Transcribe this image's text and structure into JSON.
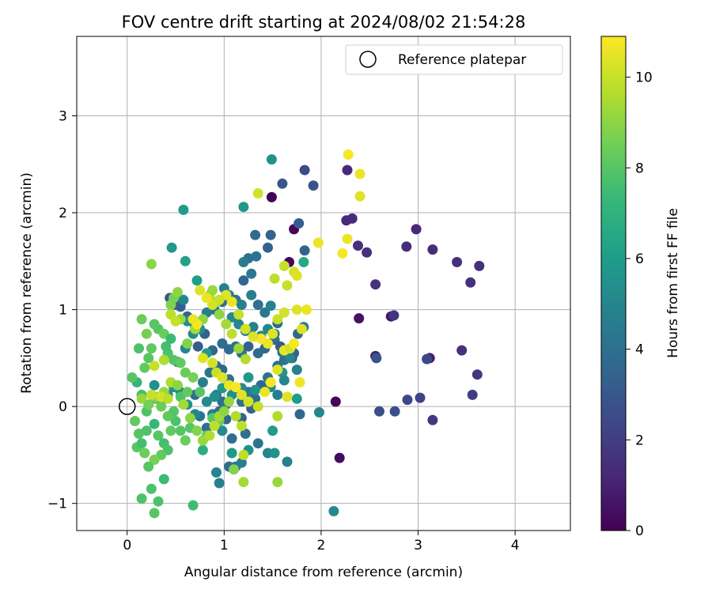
{
  "chart_data": {
    "type": "scatter",
    "title": "FOV centre drift starting at 2024/08/02 21:54:28",
    "xlabel": "Angular distance from reference (arcmin)",
    "ylabel": "Rotation from reference (arcmin)",
    "xlim": [
      -0.52,
      4.57
    ],
    "ylim": [
      -1.28,
      3.82
    ],
    "xticks": [
      0,
      1,
      2,
      3,
      4
    ],
    "xtick_labels": [
      "0",
      "1",
      "2",
      "3",
      "4"
    ],
    "yticks": [
      -1,
      0,
      1,
      2,
      3
    ],
    "ytick_labels": [
      "−1",
      "0",
      "1",
      "2",
      "3"
    ],
    "grid": true,
    "legend": {
      "placement": "top-right",
      "entries": [
        {
          "label": "Reference platepar",
          "marker": "open-circle"
        }
      ]
    },
    "reference_point": {
      "x": 0,
      "y": 0
    },
    "colorbar": {
      "label": "Hours from first FF file",
      "min": 0,
      "max": 10.9,
      "ticks": [
        0,
        2,
        4,
        6,
        8,
        10
      ],
      "colormap": "viridis"
    },
    "colormap_stops": [
      "#440154",
      "#482878",
      "#3e4989",
      "#31688e",
      "#26828e",
      "#1f9e89",
      "#35b779",
      "#6ece58",
      "#b5de2b",
      "#fde725"
    ],
    "points": [
      [
        1.49,
        2.16,
        0.1
      ],
      [
        1.72,
        1.83,
        0.2
      ],
      [
        1.67,
        1.49,
        0.2
      ],
      [
        2.15,
        0.05,
        0.2
      ],
      [
        2.19,
        -0.53,
        0.3
      ],
      [
        2.39,
        0.91,
        0.5
      ],
      [
        2.72,
        0.93,
        0.7
      ],
      [
        2.56,
        0.52,
        0.8
      ],
      [
        3.12,
        0.5,
        0.8
      ],
      [
        2.98,
        1.83,
        1.2
      ],
      [
        2.26,
        1.92,
        1.2
      ],
      [
        2.32,
        1.94,
        1.3
      ],
      [
        2.27,
        2.44,
        1.3
      ],
      [
        2.88,
        1.65,
        1.4
      ],
      [
        3.15,
        1.62,
        1.4
      ],
      [
        3.4,
        1.49,
        1.5
      ],
      [
        3.63,
        1.45,
        1.5
      ],
      [
        3.54,
        1.28,
        1.5
      ],
      [
        2.56,
        1.26,
        1.6
      ],
      [
        2.38,
        1.66,
        1.5
      ],
      [
        2.47,
        1.59,
        1.5
      ],
      [
        3.45,
        0.58,
        1.5
      ],
      [
        3.61,
        0.33,
        1.8
      ],
      [
        3.56,
        0.12,
        2.0
      ],
      [
        3.15,
        -0.14,
        1.8
      ],
      [
        2.89,
        0.07,
        2.4
      ],
      [
        3.02,
        0.09,
        2.2
      ],
      [
        2.75,
        0.94,
        1.7
      ],
      [
        3.09,
        0.49,
        2.4
      ],
      [
        2.57,
        0.5,
        2.8
      ],
      [
        2.6,
        -0.05,
        2.6
      ],
      [
        2.76,
        -0.05,
        2.6
      ],
      [
        1.83,
        2.44,
        2.5
      ],
      [
        1.92,
        2.28,
        2.8
      ],
      [
        1.6,
        2.3,
        3.0
      ],
      [
        1.77,
        1.89,
        3.2
      ],
      [
        1.83,
        1.61,
        3.4
      ],
      [
        1.45,
        1.64,
        3.3
      ],
      [
        1.48,
        1.77,
        3.5
      ],
      [
        1.32,
        1.77,
        3.8
      ],
      [
        1.76,
        0.75,
        3.7
      ],
      [
        1.72,
        0.55,
        3.5
      ],
      [
        1.7,
        0.5,
        3.3
      ],
      [
        1.55,
        0.42,
        3.9
      ],
      [
        1.78,
        -0.08,
        3.6
      ],
      [
        1.25,
        1.53,
        3.9
      ],
      [
        1.33,
        1.55,
        4.2
      ],
      [
        1.2,
        1.49,
        4.5
      ],
      [
        0.44,
        1.12,
        3.0
      ],
      [
        0.5,
        1.05,
        3.1
      ],
      [
        0.55,
        1.03,
        3.3
      ],
      [
        0.62,
        0.93,
        3.5
      ],
      [
        0.73,
        0.62,
        3.2
      ],
      [
        0.8,
        0.75,
        3.4
      ],
      [
        0.88,
        0.58,
        3.6
      ],
      [
        0.98,
        0.65,
        3.8
      ],
      [
        1.05,
        0.59,
        3.7
      ],
      [
        1.12,
        0.62,
        3.9
      ],
      [
        1.18,
        0.55,
        4.0
      ],
      [
        1.25,
        0.62,
        3.4
      ],
      [
        1.35,
        0.55,
        3.8
      ],
      [
        1.42,
        0.6,
        3.6
      ],
      [
        1.52,
        0.69,
        3.9
      ],
      [
        1.58,
        0.62,
        3.2
      ],
      [
        1.62,
        0.48,
        4.0
      ],
      [
        0.92,
        0.42,
        3.9
      ],
      [
        0.98,
        0.38,
        3.6
      ],
      [
        1.05,
        0.28,
        4.2
      ],
      [
        1.12,
        0.15,
        3.8
      ],
      [
        1.18,
        0.05,
        4.0
      ],
      [
        1.25,
        0.15,
        4.4
      ],
      [
        1.32,
        0.08,
        3.8
      ],
      [
        1.38,
        0.22,
        3.6
      ],
      [
        1.45,
        0.3,
        4.2
      ],
      [
        0.92,
        0.12,
        4.5
      ],
      [
        0.98,
        0.05,
        3.9
      ],
      [
        1.02,
        -0.13,
        3.5
      ],
      [
        1.08,
        -0.33,
        3.9
      ],
      [
        1.18,
        -0.12,
        3.6
      ],
      [
        1.22,
        -0.28,
        4.0
      ],
      [
        1.35,
        -0.38,
        4.2
      ],
      [
        1.05,
        -0.62,
        3.8
      ],
      [
        1.12,
        -0.62,
        4.2
      ],
      [
        1.18,
        -0.58,
        4.6
      ],
      [
        0.92,
        -0.68,
        5.0
      ],
      [
        0.95,
        -0.79,
        4.8
      ],
      [
        1.28,
        -0.02,
        3.4
      ],
      [
        0.75,
        -0.1,
        4.2
      ],
      [
        0.82,
        -0.22,
        3.9
      ],
      [
        0.88,
        -0.08,
        4.6
      ],
      [
        0.95,
        -0.05,
        4.0
      ],
      [
        1.02,
        0.02,
        4.2
      ],
      [
        0.7,
        0.12,
        3.9
      ],
      [
        0.78,
        0.25,
        4.6
      ],
      [
        0.85,
        0.35,
        4.2
      ],
      [
        0.52,
        0.46,
        4.8
      ],
      [
        0.6,
        0.6,
        5.0
      ],
      [
        0.68,
        0.75,
        5.2
      ],
      [
        0.75,
        0.8,
        5.5
      ],
      [
        0.82,
        0.97,
        4.6
      ],
      [
        0.9,
        1.0,
        4.4
      ],
      [
        0.98,
        1.08,
        3.9
      ],
      [
        1.05,
        1.15,
        4.6
      ],
      [
        1.12,
        1.1,
        4.2
      ],
      [
        1.18,
        1.05,
        4.8
      ],
      [
        1.28,
        1.15,
        4.6
      ],
      [
        1.35,
        1.05,
        4.0
      ],
      [
        1.42,
        0.97,
        4.4
      ],
      [
        1.48,
        1.04,
        4.8
      ],
      [
        1.55,
        0.86,
        3.8
      ],
      [
        1.2,
        1.3,
        3.6
      ],
      [
        1.28,
        1.37,
        4.4
      ],
      [
        1.0,
        1.22,
        4.8
      ],
      [
        0.58,
        1.1,
        5.0
      ],
      [
        0.62,
        0.88,
        5.4
      ],
      [
        0.7,
        0.82,
        4.8
      ],
      [
        1.08,
        0.92,
        5.2
      ],
      [
        1.15,
        0.85,
        5.0
      ],
      [
        1.22,
        0.78,
        4.6
      ],
      [
        1.3,
        0.82,
        4.8
      ],
      [
        1.38,
        0.73,
        5.5
      ],
      [
        1.45,
        0.8,
        5.0
      ],
      [
        1.52,
        0.75,
        4.5
      ],
      [
        1.6,
        0.56,
        4.2
      ],
      [
        1.68,
        0.5,
        5.0
      ],
      [
        1.75,
        0.38,
        4.8
      ],
      [
        1.82,
        0.82,
        4.6
      ],
      [
        1.6,
        0.35,
        5.6
      ],
      [
        1.48,
        0.2,
        5.2
      ],
      [
        1.55,
        0.12,
        4.6
      ],
      [
        1.62,
        0.27,
        5.0
      ],
      [
        1.32,
        0.17,
        5.5
      ],
      [
        1.25,
        0.3,
        5.8
      ],
      [
        1.18,
        0.19,
        5.2
      ],
      [
        1.08,
        0.12,
        5.4
      ],
      [
        0.98,
        0.19,
        5.8
      ],
      [
        0.9,
        0.1,
        5.5
      ],
      [
        0.82,
        0.05,
        5.2
      ],
      [
        0.7,
        -0.08,
        5.0
      ],
      [
        0.62,
        0.02,
        5.4
      ],
      [
        0.55,
        0.15,
        5.0
      ],
      [
        0.48,
        0.2,
        5.6
      ],
      [
        0.42,
        0.12,
        5.2
      ],
      [
        0.35,
        0.05,
        5.8
      ],
      [
        0.28,
        0.22,
        5.5
      ],
      [
        0.92,
        -0.15,
        5.6
      ],
      [
        0.98,
        -0.25,
        5.2
      ],
      [
        1.08,
        -0.48,
        5.8
      ],
      [
        1.25,
        -0.45,
        5.5
      ],
      [
        1.45,
        -0.48,
        5.0
      ],
      [
        1.52,
        -0.48,
        5.6
      ],
      [
        1.65,
        -0.57,
        4.8
      ],
      [
        1.5,
        -0.25,
        6.0
      ],
      [
        1.98,
        -0.06,
        5.0
      ],
      [
        2.13,
        -1.08,
        5.2
      ],
      [
        1.2,
        2.06,
        5.8
      ],
      [
        1.49,
        2.55,
        5.5
      ],
      [
        0.46,
        1.64,
        5.8
      ],
      [
        0.58,
        2.03,
        6.0
      ],
      [
        0.72,
        1.3,
        6.0
      ],
      [
        0.6,
        1.5,
        6.2
      ],
      [
        0.82,
        0.55,
        6.0
      ],
      [
        1.75,
        0.08,
        6.0
      ],
      [
        1.82,
        1.49,
        6.5
      ],
      [
        0.78,
        -0.45,
        6.8
      ],
      [
        0.68,
        -1.02,
        7.5
      ],
      [
        0.38,
        -0.75,
        7.4
      ],
      [
        0.15,
        -0.95,
        7.8
      ],
      [
        0.25,
        -0.85,
        7.8
      ],
      [
        0.32,
        -0.98,
        7.8
      ],
      [
        0.28,
        -1.1,
        8.0
      ],
      [
        0.1,
        -0.42,
        8.0
      ],
      [
        0.15,
        -0.38,
        7.6
      ],
      [
        0.2,
        -0.25,
        7.8
      ],
      [
        0.28,
        -0.18,
        7.2
      ],
      [
        0.32,
        -0.3,
        8.0
      ],
      [
        0.38,
        -0.38,
        7.6
      ],
      [
        0.45,
        -0.25,
        8.2
      ],
      [
        0.5,
        -0.15,
        7.8
      ],
      [
        0.55,
        -0.25,
        8.0
      ],
      [
        0.6,
        -0.35,
        8.4
      ],
      [
        0.65,
        -0.22,
        8.0
      ],
      [
        0.42,
        -0.45,
        7.8
      ],
      [
        0.35,
        -0.5,
        8.2
      ],
      [
        0.28,
        -0.55,
        8.6
      ],
      [
        0.22,
        -0.62,
        8.0
      ],
      [
        0.18,
        -0.48,
        8.4
      ],
      [
        0.12,
        -0.28,
        8.0
      ],
      [
        0.08,
        -0.15,
        8.2
      ],
      [
        0.2,
        -0.05,
        7.8
      ],
      [
        0.28,
        0.08,
        8.0
      ],
      [
        0.35,
        0.0,
        8.4
      ],
      [
        0.42,
        -0.1,
        8.2
      ],
      [
        0.48,
        -0.05,
        8.0
      ],
      [
        0.55,
        0.1,
        7.8
      ],
      [
        0.62,
        0.15,
        8.2
      ],
      [
        0.68,
        0.3,
        8.6
      ],
      [
        0.75,
        0.15,
        8.0
      ],
      [
        0.82,
        -0.3,
        8.2
      ],
      [
        0.88,
        -0.12,
        8.0
      ],
      [
        0.95,
        -0.15,
        8.4
      ],
      [
        0.15,
        0.12,
        7.6
      ],
      [
        0.1,
        0.25,
        7.2
      ],
      [
        0.05,
        0.3,
        8.0
      ],
      [
        0.18,
        0.4,
        8.2
      ],
      [
        0.22,
        0.5,
        8.0
      ],
      [
        0.12,
        0.6,
        7.8
      ],
      [
        0.25,
        0.6,
        8.2
      ],
      [
        0.32,
        0.8,
        8.0
      ],
      [
        0.38,
        0.75,
        8.4
      ],
      [
        0.42,
        0.55,
        7.8
      ],
      [
        0.48,
        0.48,
        8.0
      ],
      [
        0.55,
        0.45,
        8.2
      ],
      [
        0.6,
        0.35,
        8.4
      ],
      [
        0.2,
        0.75,
        8.6
      ],
      [
        0.28,
        0.85,
        8.0
      ],
      [
        0.15,
        0.9,
        8.4
      ],
      [
        0.4,
        0.62,
        7.6
      ],
      [
        0.45,
        0.7,
        7.4
      ],
      [
        0.25,
        1.47,
        9.0
      ],
      [
        0.45,
        1.05,
        8.8
      ],
      [
        0.48,
        1.12,
        8.6
      ],
      [
        0.52,
        1.18,
        9.0
      ],
      [
        0.55,
        0.9,
        9.2
      ],
      [
        0.62,
        0.65,
        8.8
      ],
      [
        0.7,
        0.8,
        9.4
      ],
      [
        0.78,
        0.9,
        9.0
      ],
      [
        0.85,
        1.15,
        9.6
      ],
      [
        0.88,
        1.2,
        9.2
      ],
      [
        0.92,
        1.08,
        9.6
      ],
      [
        0.95,
        0.95,
        9.0
      ],
      [
        1.02,
        0.85,
        9.4
      ],
      [
        1.08,
        0.75,
        9.8
      ],
      [
        1.15,
        0.6,
        9.2
      ],
      [
        1.22,
        0.49,
        9.6
      ],
      [
        0.15,
        0.08,
        9.2
      ],
      [
        0.22,
        0.02,
        8.6
      ],
      [
        0.3,
        0.1,
        9.0
      ],
      [
        0.38,
        0.15,
        9.2
      ],
      [
        0.45,
        0.25,
        9.6
      ],
      [
        0.52,
        0.22,
        9.0
      ],
      [
        0.58,
        0.02,
        9.4
      ],
      [
        0.65,
        -0.12,
        9.0
      ],
      [
        0.72,
        -0.25,
        8.8
      ],
      [
        0.78,
        -0.35,
        9.2
      ],
      [
        0.85,
        -0.3,
        9.6
      ],
      [
        0.9,
        -0.2,
        9.8
      ],
      [
        0.95,
        -0.1,
        9.4
      ],
      [
        1.0,
        -0.05,
        9.0
      ],
      [
        1.05,
        0.05,
        9.2
      ],
      [
        1.12,
        -0.1,
        9.6
      ],
      [
        1.18,
        -0.2,
        9.8
      ],
      [
        1.1,
        -0.65,
        8.8
      ],
      [
        1.2,
        -0.78,
        9.4
      ],
      [
        1.55,
        -0.78,
        9.2
      ],
      [
        1.55,
        -0.1,
        9.6
      ],
      [
        1.2,
        -0.5,
        9.8
      ],
      [
        1.62,
        1.45,
        10.0
      ],
      [
        1.52,
        1.32,
        9.8
      ],
      [
        1.72,
        1.39,
        10.2
      ],
      [
        1.75,
        1.35,
        10.4
      ],
      [
        1.65,
        1.25,
        10.0
      ],
      [
        1.35,
        2.2,
        10.2
      ],
      [
        2.28,
        2.6,
        10.8
      ],
      [
        2.4,
        2.4,
        10.6
      ],
      [
        2.4,
        2.17,
        10.4
      ],
      [
        1.97,
        1.69,
        10.6
      ],
      [
        2.27,
        1.73,
        10.6
      ],
      [
        2.22,
        1.58,
        10.8
      ],
      [
        1.85,
        1.0,
        10.6
      ],
      [
        1.75,
        1.0,
        10.4
      ],
      [
        1.62,
        0.97,
        10.2
      ],
      [
        1.55,
        0.9,
        10.0
      ],
      [
        1.5,
        0.75,
        10.4
      ],
      [
        1.45,
        0.65,
        10.6
      ],
      [
        1.38,
        0.7,
        10.8
      ],
      [
        1.3,
        0.72,
        10.4
      ],
      [
        1.22,
        0.8,
        10.2
      ],
      [
        1.15,
        0.95,
        10.0
      ],
      [
        1.08,
        1.08,
        10.6
      ],
      [
        1.02,
        1.15,
        10.4
      ],
      [
        0.95,
        1.1,
        10.0
      ],
      [
        0.88,
        1.05,
        10.2
      ],
      [
        0.82,
        1.12,
        10.6
      ],
      [
        0.75,
        1.2,
        10.4
      ],
      [
        0.72,
        0.85,
        10.8
      ],
      [
        0.68,
        0.9,
        10.6
      ],
      [
        0.78,
        0.5,
        10.4
      ],
      [
        0.88,
        0.45,
        10.2
      ],
      [
        0.92,
        0.35,
        10.0
      ],
      [
        0.98,
        0.3,
        10.4
      ],
      [
        1.05,
        0.22,
        10.6
      ],
      [
        1.12,
        0.2,
        10.8
      ],
      [
        1.18,
        0.12,
        10.4
      ],
      [
        1.25,
        0.05,
        10.2
      ],
      [
        1.35,
        0.0,
        10.0
      ],
      [
        1.42,
        0.15,
        10.6
      ],
      [
        1.48,
        0.25,
        10.8
      ],
      [
        1.55,
        0.38,
        10.4
      ],
      [
        1.62,
        0.58,
        10.6
      ],
      [
        1.68,
        0.6,
        10.2
      ],
      [
        1.72,
        0.65,
        10.8
      ],
      [
        1.8,
        0.8,
        10.4
      ],
      [
        1.78,
        0.25,
        10.6
      ],
      [
        1.65,
        0.1,
        10.4
      ],
      [
        0.25,
        0.12,
        10.0
      ],
      [
        0.35,
        0.1,
        10.2
      ],
      [
        0.42,
        0.08,
        9.8
      ],
      [
        0.28,
        0.42,
        10.0
      ],
      [
        0.38,
        0.48,
        9.6
      ],
      [
        0.45,
        0.95,
        9.8
      ],
      [
        0.5,
        0.88,
        10.0
      ]
    ]
  }
}
